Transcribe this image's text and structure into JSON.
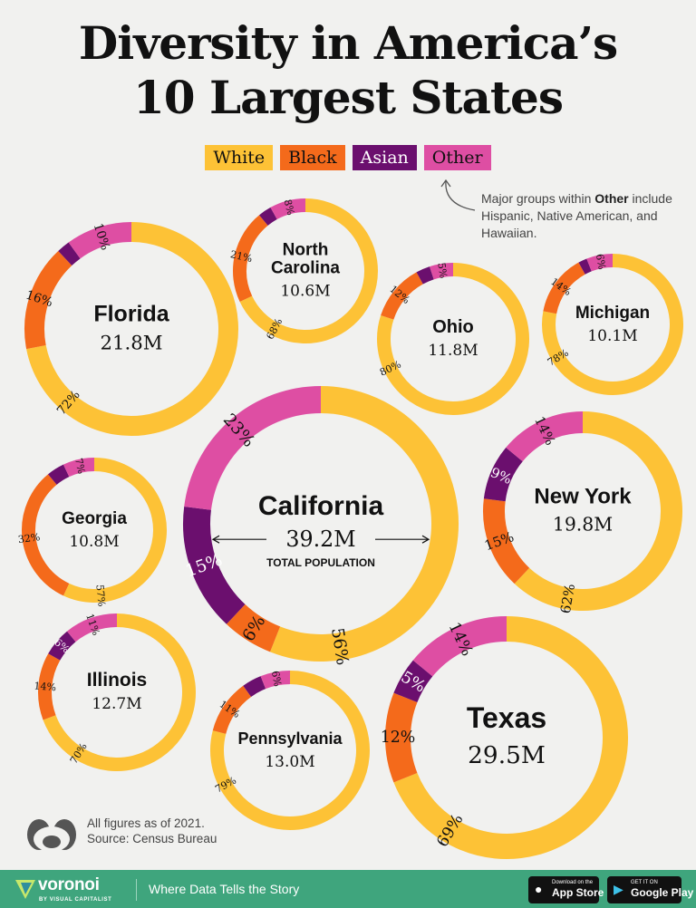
{
  "title": [
    "Diversity in America’s",
    "10 Largest States"
  ],
  "legend": [
    {
      "label": "White",
      "color": "#fdc236"
    },
    {
      "label": "Black",
      "color": "#f46a1b"
    },
    {
      "label": "Asian",
      "color": "#6b0f6e"
    },
    {
      "label": "Other",
      "color": "#de4ea3"
    }
  ],
  "note": {
    "pre": "Major groups within ",
    "bold": "Other",
    "post": " include Hispanic, Native American, and Hawaiian."
  },
  "chart_data": {
    "type": "donut",
    "series_order": [
      "White",
      "Black",
      "Asian",
      "Other"
    ],
    "states": [
      {
        "name": "Florida",
        "population": "21.8M",
        "values": [
          72,
          16,
          2,
          10
        ],
        "labels": [
          "72%",
          "16%",
          "",
          "10%"
        ]
      },
      {
        "name": "North Carolina",
        "population": "10.6M",
        "values": [
          68,
          21,
          3,
          8
        ],
        "labels": [
          "68%",
          "21%",
          "",
          "8%"
        ]
      },
      {
        "name": "Ohio",
        "population": "11.8M",
        "values": [
          80,
          12,
          3,
          5
        ],
        "labels": [
          "80%",
          "12%",
          "",
          "5%"
        ]
      },
      {
        "name": "Michigan",
        "population": "10.1M",
        "values": [
          78,
          14,
          2,
          6
        ],
        "labels": [
          "78%",
          "14%",
          "",
          "6%"
        ]
      },
      {
        "name": "California",
        "population": "39.2M",
        "subtitle": "TOTAL POPULATION",
        "values": [
          56,
          6,
          15,
          23
        ],
        "labels": [
          "56%",
          "6%",
          "15%",
          "23%"
        ]
      },
      {
        "name": "Georgia",
        "population": "10.8M",
        "values": [
          57,
          32,
          4,
          7
        ],
        "labels": [
          "57%",
          "32%",
          "",
          "7%"
        ]
      },
      {
        "name": "New York",
        "population": "19.8M",
        "values": [
          62,
          15,
          9,
          14
        ],
        "labels": [
          "62%",
          "15%",
          "9%",
          "14%"
        ]
      },
      {
        "name": "Illinois",
        "population": "12.7M",
        "values": [
          70,
          14,
          6,
          11
        ],
        "labels": [
          "70%",
          "14%",
          "6%",
          "11%"
        ]
      },
      {
        "name": "Pennsylvania",
        "population": "13.0M",
        "values": [
          79,
          11,
          4,
          6
        ],
        "labels": [
          "79%",
          "11%",
          "",
          "6%"
        ]
      },
      {
        "name": "Texas",
        "population": "29.5M",
        "values": [
          69,
          12,
          5,
          14
        ],
        "labels": [
          "69%",
          "12%",
          "5%",
          "14%"
        ]
      }
    ]
  },
  "footnote": [
    "All figures as of 2021.",
    "Source: Census Bureau"
  ],
  "footer": {
    "brand": "voronoi",
    "brand_sub": "BY VISUAL CAPITALIST",
    "tagline": "Where Data Tells the Story",
    "app_store": {
      "small": "Download on the",
      "big": "App Store"
    },
    "google_play": {
      "small": "GET IT ON",
      "big": "Google Play"
    }
  }
}
